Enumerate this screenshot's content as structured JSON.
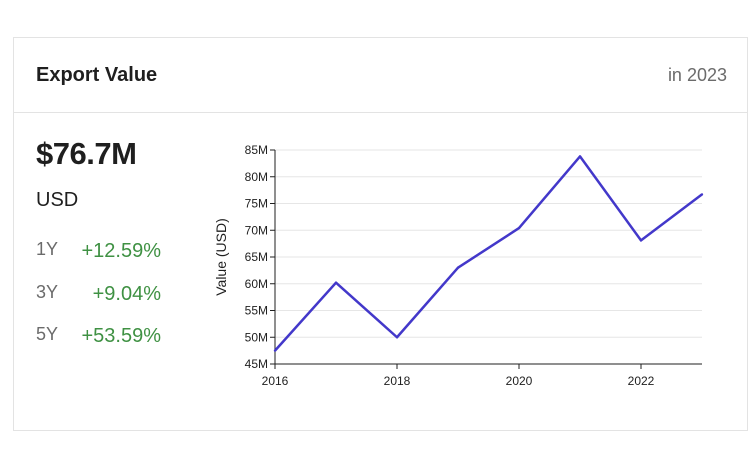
{
  "card": {
    "title": "Export Value",
    "period": "in 2023",
    "value": "$76.7M",
    "currency": "USD",
    "changes": [
      {
        "period": "1Y",
        "value": "+12.59%"
      },
      {
        "period": "3Y",
        "value": "+9.04%"
      },
      {
        "period": "5Y",
        "value": "+53.59%"
      }
    ]
  },
  "colors": {
    "line": "#4338ca",
    "positive": "#3f9143",
    "grid": "#e6e6e6",
    "axis": "#1f1f1f"
  },
  "chart_data": {
    "type": "line",
    "title": "",
    "xlabel": "",
    "ylabel": "Value (USD)",
    "x": [
      2016,
      2017,
      2018,
      2019,
      2020,
      2021,
      2022,
      2023
    ],
    "series": [
      {
        "values": [
          47.5,
          60.2,
          50.0,
          63.0,
          70.4,
          83.8,
          68.1,
          76.7
        ]
      }
    ],
    "xlim": [
      2016,
      2023
    ],
    "ylim": [
      45,
      85
    ],
    "x_ticks": [
      2016,
      2018,
      2020,
      2022
    ],
    "x_tick_labels": [
      "2016",
      "2018",
      "2020",
      "2022"
    ],
    "y_ticks": [
      45,
      50,
      55,
      60,
      65,
      70,
      75,
      80,
      85
    ],
    "y_tick_labels": [
      "45M",
      "50M",
      "55M",
      "60M",
      "65M",
      "70M",
      "75M",
      "80M",
      "85M"
    ],
    "grid": true,
    "legend": "none"
  }
}
